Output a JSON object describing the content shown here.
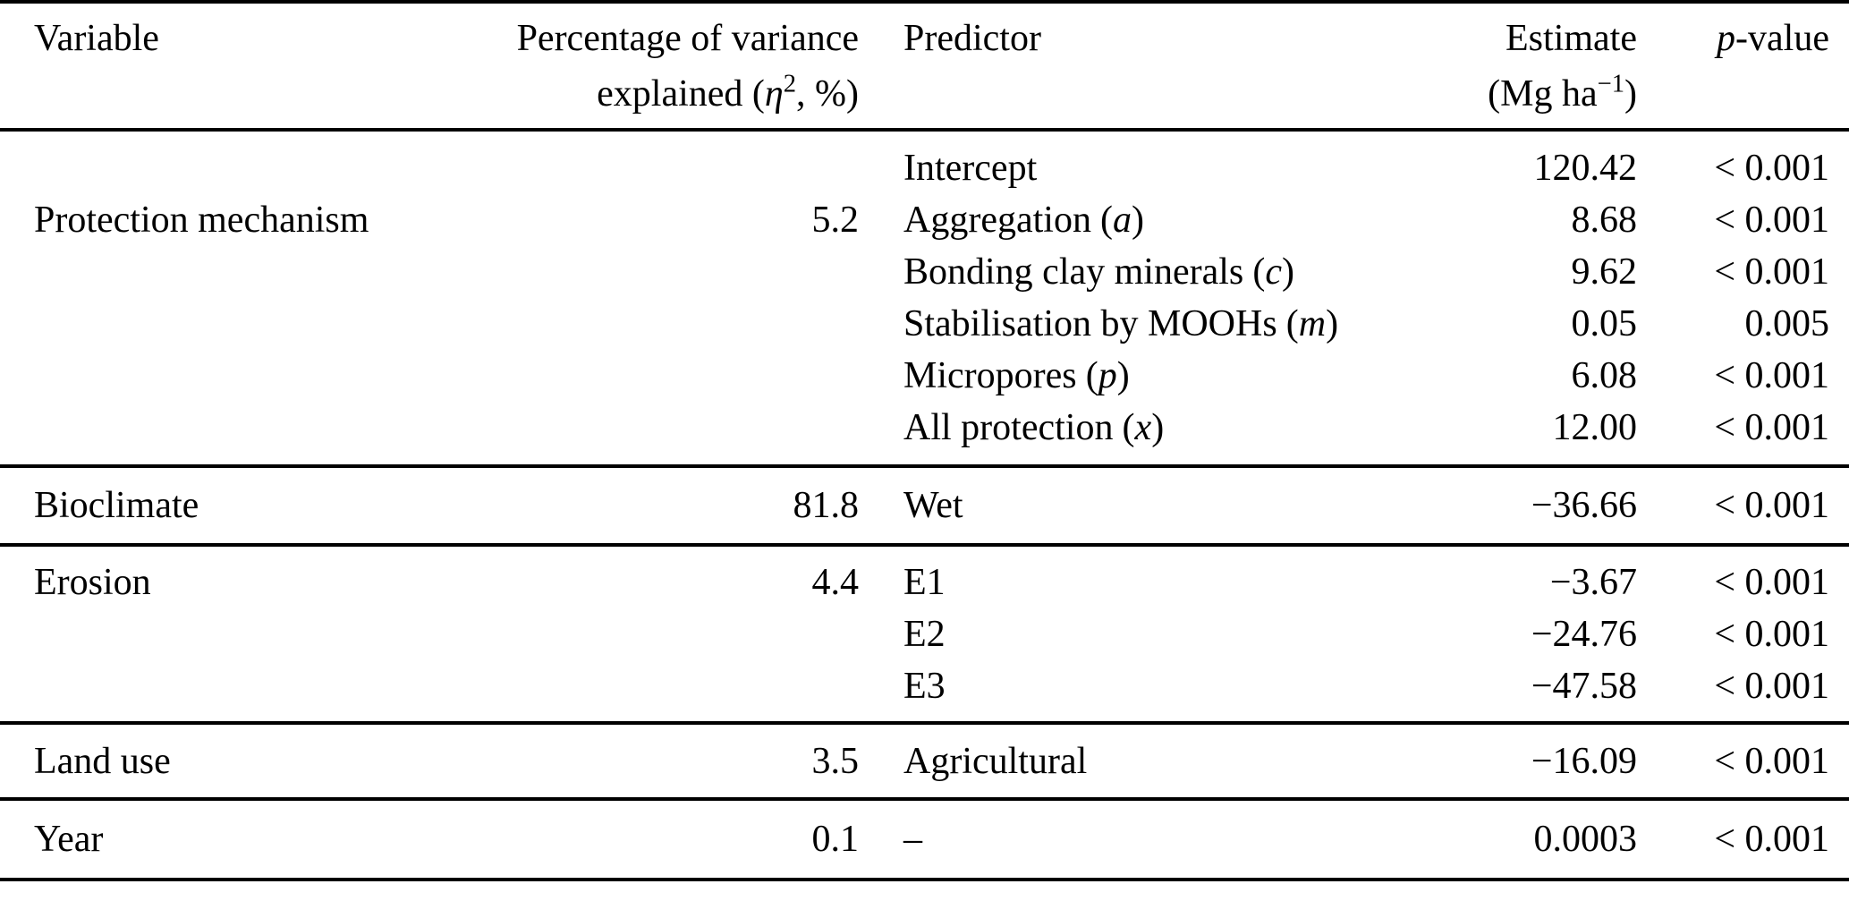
{
  "table": {
    "columns": {
      "variable": "Variable",
      "variance_line1": "Percentage of variance",
      "variance_line2_prefix": "explained (",
      "variance_eta": "η",
      "variance_eta_sup": "2",
      "variance_line2_suffix": ", %)",
      "predictor": "Predictor",
      "estimate": "Estimate",
      "estimate_unit_prefix": "(Mg ha",
      "estimate_unit_sup": "−1",
      "estimate_unit_suffix": ")",
      "pvalue_italic": "p",
      "pvalue_rest": "-value"
    },
    "sections": [
      {
        "variable": "Protection mechanism",
        "variance": "5.2",
        "rows": [
          {
            "predictor": "Intercept",
            "symbol": "",
            "estimate": "120.42",
            "p": "< 0.001"
          },
          {
            "predictor": "Aggregation",
            "symbol": "a",
            "estimate": "8.68",
            "p": "< 0.001"
          },
          {
            "predictor": "Bonding clay minerals",
            "symbol": "c",
            "estimate": "9.62",
            "p": "< 0.001"
          },
          {
            "predictor": "Stabilisation by MOOHs",
            "symbol": "m",
            "estimate": "0.05",
            "p": "0.005"
          },
          {
            "predictor": "Micropores",
            "symbol": "p",
            "estimate": "6.08",
            "p": "< 0.001"
          },
          {
            "predictor": "All protection",
            "symbol": "x",
            "estimate": "12.00",
            "p": "< 0.001"
          }
        ]
      },
      {
        "variable": "Bioclimate",
        "variance": "81.8",
        "rows": [
          {
            "predictor": "Wet",
            "symbol": "",
            "estimate": "−36.66",
            "p": "< 0.001"
          }
        ]
      },
      {
        "variable": "Erosion",
        "variance": "4.4",
        "rows": [
          {
            "predictor": "E1",
            "symbol": "",
            "estimate": "−3.67",
            "p": "< 0.001"
          },
          {
            "predictor": "E2",
            "symbol": "",
            "estimate": "−24.76",
            "p": "< 0.001"
          },
          {
            "predictor": "E3",
            "symbol": "",
            "estimate": "−47.58",
            "p": "< 0.001"
          }
        ]
      },
      {
        "variable": "Land use",
        "variance": "3.5",
        "rows": [
          {
            "predictor": "Agricultural",
            "symbol": "",
            "estimate": "−16.09",
            "p": "< 0.001"
          }
        ]
      },
      {
        "variable": "Year",
        "variance": "0.1",
        "rows": [
          {
            "predictor": "–",
            "symbol": "",
            "estimate": "0.0003",
            "p": "< 0.001"
          }
        ]
      }
    ]
  }
}
